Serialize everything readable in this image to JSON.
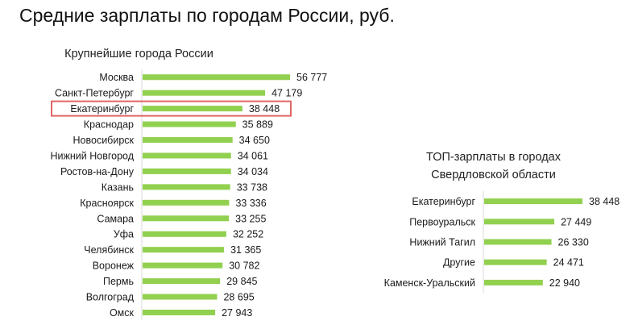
{
  "page": {
    "title": "Средние зарплаты по городам России, руб."
  },
  "colors": {
    "bar": "#92d050",
    "axis": "#d9d9d9",
    "highlight_border": "#e06666",
    "text": "#1a1a1a"
  },
  "chart_data": [
    {
      "type": "bar",
      "orientation": "horizontal",
      "title": "Крупнейшие города России",
      "categories": [
        "Москва",
        "Санкт-Петербург",
        "Екатеринбург",
        "Краснодар",
        "Новосибирск",
        "Нижний Новгород",
        "Ростов-на-Дону",
        "Казань",
        "Красноярск",
        "Самара",
        "Уфа",
        "Челябинск",
        "Воронеж",
        "Пермь",
        "Волгоград",
        "Омск"
      ],
      "values": [
        56777,
        47179,
        38448,
        35889,
        34650,
        34061,
        34034,
        33738,
        33336,
        33255,
        32252,
        31365,
        30782,
        29845,
        28695,
        27943
      ],
      "value_labels": [
        "56 777",
        "47 179",
        "38 448",
        "35 889",
        "34 650",
        "34 061",
        "34 034",
        "33 738",
        "33 336",
        "33 255",
        "32 252",
        "31 365",
        "30 782",
        "29 845",
        "28 695",
        "27 943"
      ],
      "highlighted_category": "Екатеринбург",
      "xlim": [
        0,
        56777
      ],
      "grid": false,
      "legend": "none"
    },
    {
      "type": "bar",
      "orientation": "horizontal",
      "title": "ТОП-зарплаты в городах Свердловской области",
      "categories": [
        "Екатеринбург",
        "Первоуральск",
        "Нижний Тагил",
        "Другие",
        "Каменск-Уральский"
      ],
      "values": [
        38448,
        27449,
        26330,
        24471,
        22940
      ],
      "value_labels": [
        "38 448",
        "27 449",
        "26 330",
        "24 471",
        "22 940"
      ],
      "xlim": [
        0,
        38448
      ],
      "grid": false,
      "legend": "none"
    }
  ]
}
